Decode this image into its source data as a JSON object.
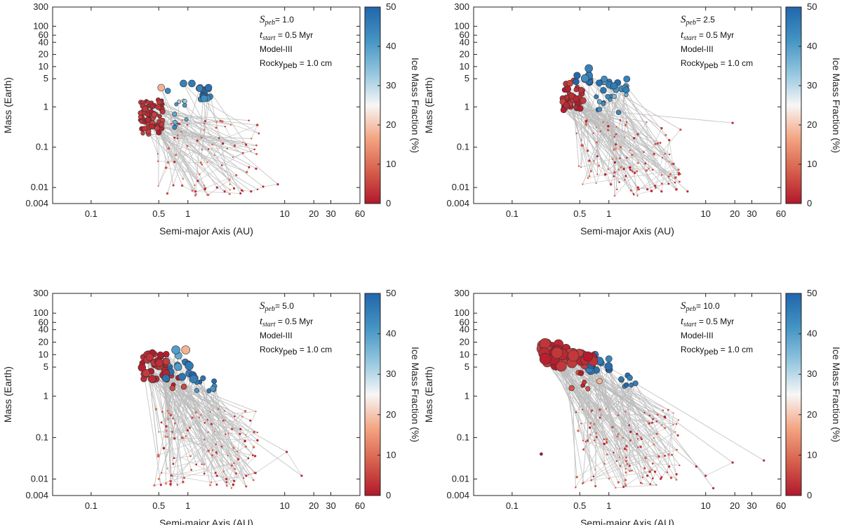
{
  "colorbar": {
    "label": "Ice Mass Fraction (%)",
    "ticks": [
      0,
      10,
      20,
      30,
      40,
      50
    ],
    "colors": [
      "#b2182b",
      "#d6604d",
      "#f4a582",
      "#f7f7f7",
      "#92c5de",
      "#4393c3",
      "#2166ac"
    ]
  },
  "chart_data": [
    {
      "type": "scatter",
      "xlabel": "Semi-major Axis (AU)",
      "ylabel": "Mass (Earth)",
      "xscale": "log",
      "yscale": "log",
      "xlim": [
        0.04,
        60
      ],
      "ylim": [
        0.004,
        300
      ],
      "x_ticks": [
        0.1,
        0.5,
        1,
        10,
        20,
        30,
        60
      ],
      "x_tick_labels": [
        "0.1",
        "0.5",
        "1",
        "10",
        "20",
        "30",
        "60"
      ],
      "y_ticks": [
        0.004,
        0.01,
        0.1,
        1,
        5,
        10,
        20,
        40,
        60,
        100,
        300
      ],
      "y_tick_labels": [
        "0.004",
        "0.01",
        "0.1",
        "1",
        "5",
        "10",
        "20",
        "40",
        "60",
        "100",
        "300"
      ],
      "annotation": {
        "s_main": "S",
        "s_sub": "peb",
        "s_value": "= 1.0",
        "t_main": "t",
        "t_sub": "start",
        "t_value": "= 0.5 Myr",
        "model": "Model-III",
        "rocky_main": "Rocky",
        "rocky_sub": "peb",
        "rocky_value": "= 1.0 cm"
      },
      "seed": 1,
      "n_small": 80,
      "groups": [
        {
          "x": [
            0.32,
            0.55
          ],
          "m": [
            0.2,
            1.5
          ],
          "ice": [
            0,
            5
          ],
          "r": [
            2.5,
            4
          ],
          "n": 85
        },
        {
          "x": [
            0.7,
            1.0
          ],
          "m": [
            0.3,
            1.5
          ],
          "ice": [
            30,
            45
          ],
          "r": [
            2.5,
            3.5
          ],
          "n": 10
        },
        {
          "x": [
            1.3,
            1.75
          ],
          "m": [
            1.5,
            3.2
          ],
          "ice": [
            40,
            50
          ],
          "r": [
            4,
            5
          ],
          "n": 14
        }
      ],
      "points": [
        {
          "x": 0.53,
          "m": 3.0,
          "ice": 18,
          "r": 5
        },
        {
          "x": 0.9,
          "m": 3.8,
          "ice": 45,
          "r": 5
        },
        {
          "x": 0.62,
          "m": 2.5,
          "ice": 44,
          "r": 4
        },
        {
          "x": 1.1,
          "m": 3.8,
          "ice": 46,
          "r": 5
        }
      ],
      "tail": [
        {
          "x": 1.2,
          "m": 0.008
        },
        {
          "x": 1.5,
          "m": 0.009
        },
        {
          "x": 2.0,
          "m": 0.01
        },
        {
          "x": 2.4,
          "m": 0.008
        },
        {
          "x": 3.0,
          "m": 0.0095
        },
        {
          "x": 3.6,
          "m": 0.0085
        },
        {
          "x": 4.5,
          "m": 0.008
        },
        {
          "x": 6.0,
          "m": 0.0105
        },
        {
          "x": 8.5,
          "m": 0.012
        }
      ]
    },
    {
      "type": "scatter",
      "xlabel": "Semi-major Axis (AU)",
      "ylabel": "Mass (Earth)",
      "xscale": "log",
      "yscale": "log",
      "xlim": [
        0.04,
        60
      ],
      "ylim": [
        0.004,
        300
      ],
      "x_ticks": [
        0.1,
        0.5,
        1,
        10,
        20,
        30,
        60
      ],
      "x_tick_labels": [
        "0.1",
        "0.5",
        "1",
        "10",
        "20",
        "30",
        "60"
      ],
      "y_ticks": [
        0.004,
        0.01,
        0.1,
        1,
        5,
        10,
        20,
        40,
        60,
        100,
        300
      ],
      "y_tick_labels": [
        "0.004",
        "0.01",
        "0.1",
        "1",
        "5",
        "10",
        "20",
        "40",
        "60",
        "100",
        "300"
      ],
      "annotation": {
        "s_main": "S",
        "s_sub": "peb",
        "s_value": "= 2.5",
        "t_main": "t",
        "t_sub": "start",
        "t_value": "= 0.5 Myr",
        "model": "Model-III",
        "rocky_main": "Rocky",
        "rocky_sub": "peb",
        "rocky_value": "= 1.0 cm"
      },
      "seed": 2,
      "n_small": 110,
      "groups": [
        {
          "x": [
            0.33,
            0.55
          ],
          "m": [
            0.8,
            4.5
          ],
          "ice": [
            0,
            5
          ],
          "r": [
            3,
            4.5
          ],
          "n": 40
        },
        {
          "x": [
            0.45,
            0.65
          ],
          "m": [
            4,
            6.5
          ],
          "ice": [
            42,
            50
          ],
          "r": [
            4,
            5.5
          ],
          "n": 10
        },
        {
          "x": [
            0.7,
            1.7
          ],
          "m": [
            2.5,
            5
          ],
          "ice": [
            40,
            50
          ],
          "r": [
            4,
            5
          ],
          "n": 16
        },
        {
          "x": [
            0.6,
            1.6
          ],
          "m": [
            0.7,
            2
          ],
          "ice": [
            35,
            48
          ],
          "r": [
            2.5,
            3.5
          ],
          "n": 12
        }
      ],
      "points": [
        {
          "x": 0.62,
          "m": 9.0,
          "ice": 45,
          "r": 5.5
        },
        {
          "x": 0.56,
          "m": 4.8,
          "ice": 0,
          "r": 4.5
        }
      ],
      "tail": [
        {
          "x": 2.0,
          "m": 0.01
        },
        {
          "x": 2.5,
          "m": 0.009
        },
        {
          "x": 3.0,
          "m": 0.011
        },
        {
          "x": 3.5,
          "m": 0.008
        },
        {
          "x": 4.2,
          "m": 0.15
        },
        {
          "x": 5.0,
          "m": 0.009
        },
        {
          "x": 6.5,
          "m": 0.008
        },
        {
          "x": 19.0,
          "m": 0.4
        }
      ]
    },
    {
      "type": "scatter",
      "xlabel": "Semi-major Axis (AU)",
      "ylabel": "Mass (Earth)",
      "xscale": "log",
      "yscale": "log",
      "xlim": [
        0.04,
        60
      ],
      "ylim": [
        0.004,
        300
      ],
      "x_ticks": [
        0.1,
        0.5,
        1,
        10,
        20,
        30,
        60
      ],
      "x_tick_labels": [
        "0.1",
        "0.5",
        "1",
        "10",
        "20",
        "30",
        "60"
      ],
      "y_ticks": [
        0.004,
        0.01,
        0.1,
        1,
        5,
        10,
        20,
        40,
        60,
        100,
        300
      ],
      "y_tick_labels": [
        "0.004",
        "0.01",
        "0.1",
        "1",
        "5",
        "10",
        "20",
        "40",
        "60",
        "100",
        "300"
      ],
      "annotation": {
        "s_main": "S",
        "s_sub": "peb",
        "s_value": "= 5.0",
        "t_main": "t",
        "t_sub": "start",
        "t_value": "= 0.5 Myr",
        "model": "Model-III",
        "rocky_main": "Rocky",
        "rocky_sub": "peb",
        "rocky_value": "= 1.0 cm"
      },
      "seed": 3,
      "n_small": 110,
      "groups": [
        {
          "x": [
            0.33,
            0.62
          ],
          "m": [
            2.5,
            11
          ],
          "ice": [
            0,
            5
          ],
          "r": [
            4,
            5.5
          ],
          "n": 40
        },
        {
          "x": [
            0.55,
            1.2
          ],
          "m": [
            2.5,
            8
          ],
          "ice": [
            40,
            50
          ],
          "r": [
            4,
            6
          ],
          "n": 14
        },
        {
          "x": [
            1.2,
            2.0
          ],
          "m": [
            1.3,
            3.5
          ],
          "ice": [
            40,
            50
          ],
          "r": [
            3,
            4
          ],
          "n": 10
        },
        {
          "x": [
            0.5,
            1.0
          ],
          "m": [
            1.5,
            4
          ],
          "ice": [
            0,
            8
          ],
          "r": [
            3,
            4
          ],
          "n": 8
        }
      ],
      "points": [
        {
          "x": 0.75,
          "m": 13.0,
          "ice": 40,
          "r": 6
        },
        {
          "x": 0.95,
          "m": 13.0,
          "ice": 18,
          "r": 6
        },
        {
          "x": 0.8,
          "m": 9.5,
          "ice": 38,
          "r": 5
        }
      ],
      "tail": [
        {
          "x": 2.0,
          "m": 0.012
        },
        {
          "x": 2.5,
          "m": 0.01
        },
        {
          "x": 3.0,
          "m": 0.009
        },
        {
          "x": 3.5,
          "m": 0.16
        },
        {
          "x": 4.0,
          "m": 0.012
        },
        {
          "x": 5.0,
          "m": 0.014
        },
        {
          "x": 10.5,
          "m": 0.045
        },
        {
          "x": 15.0,
          "m": 0.012
        }
      ]
    },
    {
      "type": "scatter",
      "xlabel": "Semi-major Axis (AU)",
      "ylabel": "Mass (Earth)",
      "xscale": "log",
      "yscale": "log",
      "xlim": [
        0.04,
        60
      ],
      "ylim": [
        0.004,
        300
      ],
      "x_ticks": [
        0.1,
        0.5,
        1,
        10,
        20,
        30,
        60
      ],
      "x_tick_labels": [
        "0.1",
        "0.5",
        "1",
        "10",
        "20",
        "30",
        "60"
      ],
      "y_ticks": [
        0.004,
        0.01,
        0.1,
        1,
        5,
        10,
        20,
        40,
        60,
        100,
        300
      ],
      "y_tick_labels": [
        "0.004",
        "0.01",
        "0.1",
        "1",
        "5",
        "10",
        "20",
        "40",
        "60",
        "100",
        "300"
      ],
      "annotation": {
        "s_main": "S",
        "s_sub": "peb",
        "s_value": "= 10.0",
        "t_main": "t",
        "t_sub": "start",
        "t_value": "= 0.5 Myr",
        "model": "Model-III",
        "rocky_main": "Rocky",
        "rocky_sub": "peb",
        "rocky_value": "= 1.0 cm"
      },
      "seed": 4,
      "n_small": 120,
      "groups": [
        {
          "x": [
            0.2,
            0.45
          ],
          "m": [
            5,
            22
          ],
          "ice": [
            0,
            5
          ],
          "r": [
            6,
            8
          ],
          "n": 40
        },
        {
          "x": [
            0.45,
            0.7
          ],
          "m": [
            5,
            12
          ],
          "ice": [
            0,
            5
          ],
          "r": [
            5,
            7
          ],
          "n": 12
        },
        {
          "x": [
            0.6,
            1.1
          ],
          "m": [
            4,
            8
          ],
          "ice": [
            40,
            50
          ],
          "r": [
            4,
            6
          ],
          "n": 14
        },
        {
          "x": [
            1.3,
            1.9
          ],
          "m": [
            1.5,
            3.5
          ],
          "ice": [
            40,
            50
          ],
          "r": [
            3,
            4
          ],
          "n": 8
        },
        {
          "x": [
            0.35,
            0.7
          ],
          "m": [
            1.5,
            4
          ],
          "ice": [
            0,
            8
          ],
          "r": [
            3,
            4
          ],
          "n": 6
        }
      ],
      "points": [
        {
          "x": 0.27,
          "m": 15.0,
          "ice": 22,
          "r": 6
        },
        {
          "x": 0.72,
          "m": 10.0,
          "ice": 45,
          "r": 5
        },
        {
          "x": 0.8,
          "m": 2.3,
          "ice": 18,
          "r": 4
        },
        {
          "x": 0.2,
          "m": 0.04,
          "ice": 0,
          "r": 2
        }
      ],
      "tail": [
        {
          "x": 2.5,
          "m": 0.012
        },
        {
          "x": 3.0,
          "m": 0.015
        },
        {
          "x": 3.5,
          "m": 0.011
        },
        {
          "x": 4.2,
          "m": 0.02
        },
        {
          "x": 5.0,
          "m": 0.013
        },
        {
          "x": 8.0,
          "m": 0.02
        },
        {
          "x": 10.0,
          "m": 0.012
        },
        {
          "x": 19.0,
          "m": 0.025
        },
        {
          "x": 40.0,
          "m": 0.028
        },
        {
          "x": 12.0,
          "m": 0.006
        }
      ]
    }
  ]
}
